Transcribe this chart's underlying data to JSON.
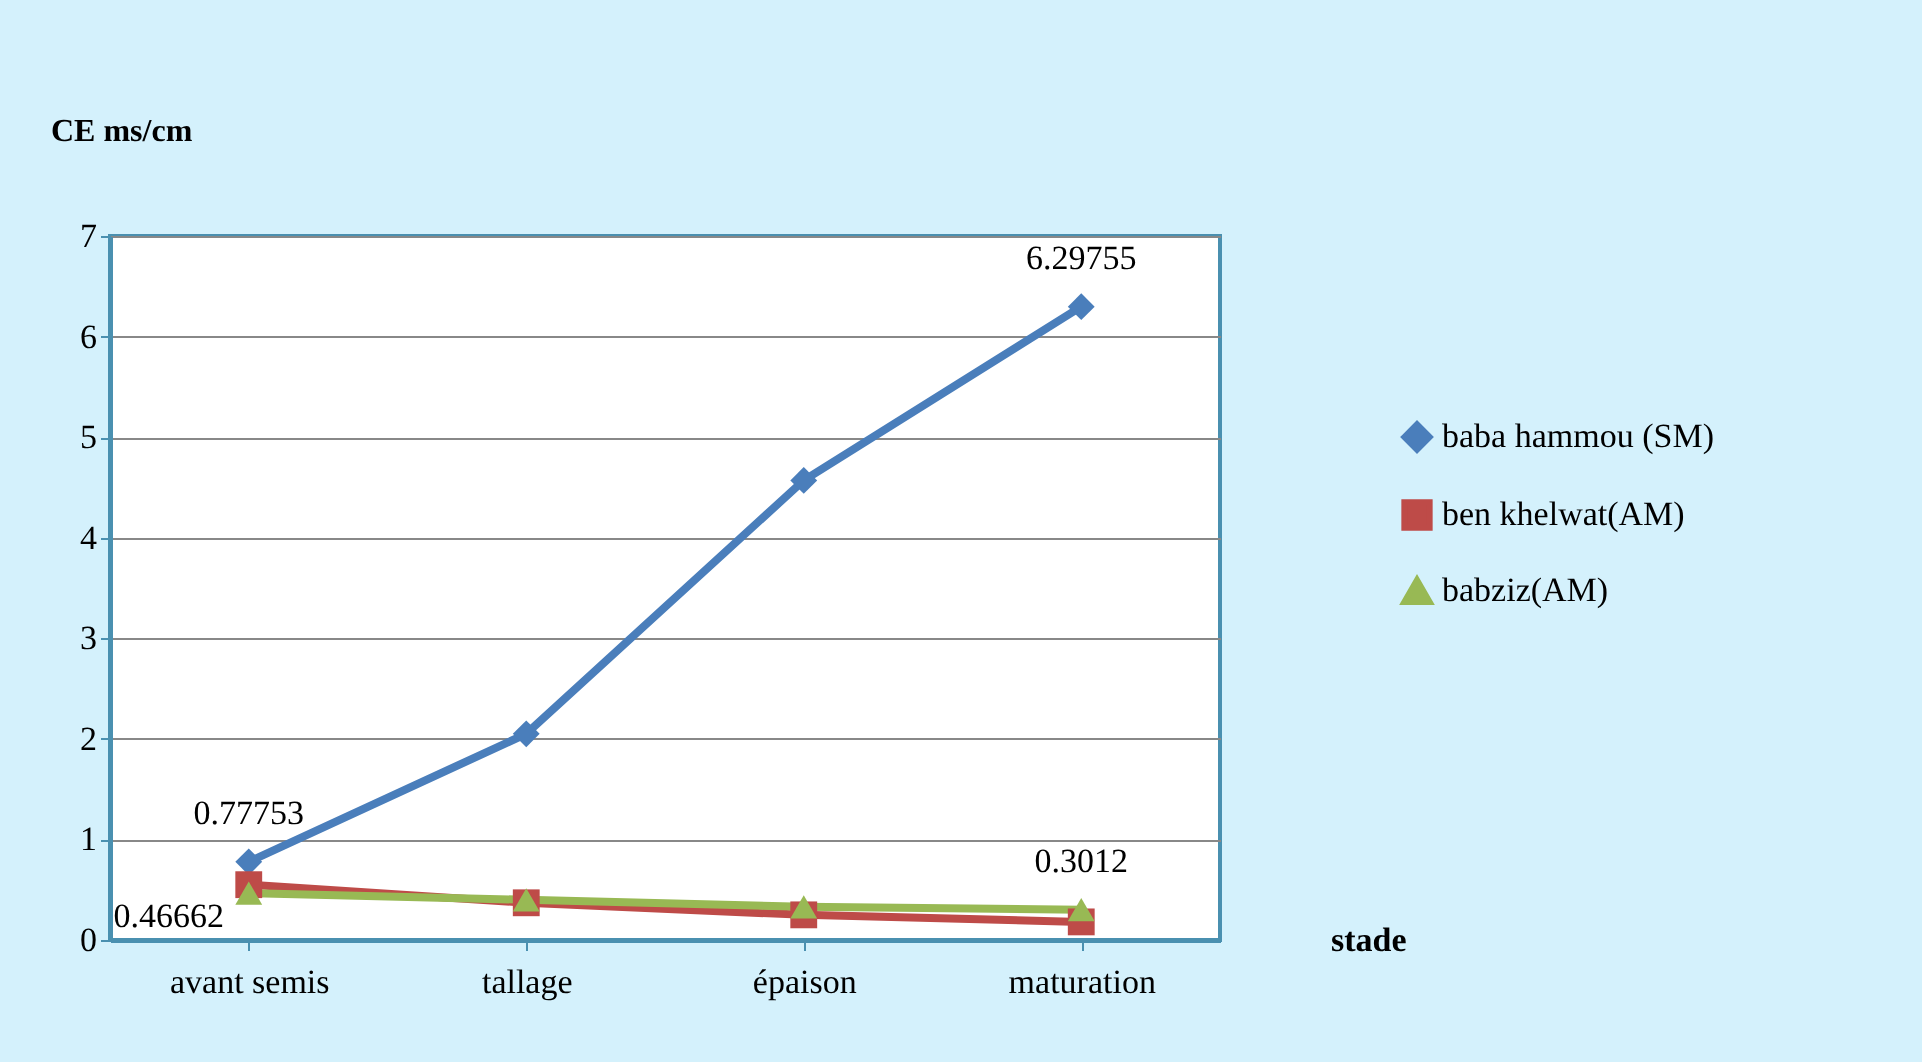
{
  "chart_data": {
    "type": "line",
    "ylabel": "CE  ms/cm",
    "xlabel": "stade",
    "categories": [
      "avant semis",
      "tallage",
      "épaison",
      "maturation"
    ],
    "ylim": [
      0,
      7
    ],
    "yticks": [
      0,
      1,
      2,
      3,
      4,
      5,
      6,
      7
    ],
    "grid": "y",
    "legend": "right",
    "line_style": "solid",
    "series": [
      {
        "name": "baba hammou (SM)",
        "color": "#4a7ebb",
        "marker": "diamond",
        "values": [
          0.77753,
          2.05,
          4.57,
          6.29755
        ],
        "value_labels": [
          "0.77753",
          null,
          null,
          "6.29755"
        ]
      },
      {
        "name": "ben khelwat(AM)",
        "color": "#be4b48",
        "marker": "square",
        "values": [
          0.55,
          0.37,
          0.25,
          0.18
        ],
        "value_labels": [
          null,
          null,
          null,
          null
        ]
      },
      {
        "name": "babziz(AM)",
        "color": "#98b954",
        "marker": "triangle",
        "values": [
          0.46662,
          0.4,
          0.33,
          0.3012
        ],
        "value_labels": [
          "0.46662",
          null,
          null,
          "0.3012"
        ]
      }
    ]
  }
}
